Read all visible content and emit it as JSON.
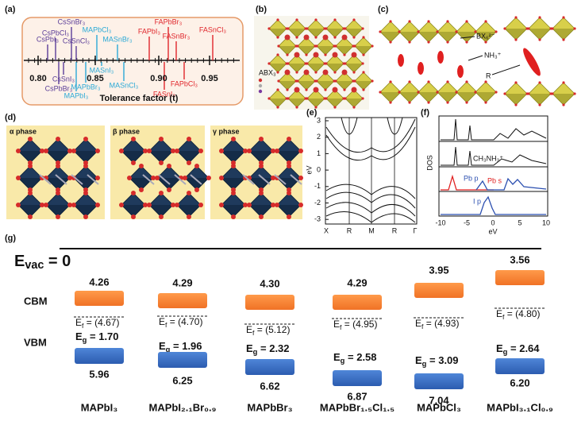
{
  "panel_labels": [
    "(a)",
    "(b)",
    "(c)",
    "(d)",
    "(e)",
    "(f)",
    "(g)"
  ],
  "tolerance": {
    "compounds": [
      "CsPbI₃",
      "CsPbCl₃",
      "CsSnBr₃",
      "CsSnCl₃",
      "CsSnI₃",
      "CsPbBr₃",
      "MAPbI₃",
      "MAPbBr₃",
      "MAPbCl₃",
      "MASnI₃",
      "MASnBr₃",
      "MASnCl₃",
      "FAPbI₃",
      "FAPbBr₃",
      "FASnBr₃",
      "FASnI₃",
      "FAPbCl₃",
      "FASnCl₃"
    ],
    "ticks": [
      "0.80",
      "0.85",
      "0.90",
      "0.95"
    ],
    "axis_label": "Tolerance factor (t)"
  },
  "perovskite": {
    "legend": "ABX₃"
  },
  "layered": {
    "labels": [
      "BX₆²⁻",
      "NH₃⁺",
      "R"
    ]
  },
  "phases": [
    "α phase",
    "β phase",
    "γ phase"
  ],
  "bands": {
    "y_label": "eV",
    "yticks": [
      "3",
      "2",
      "1",
      "0",
      "-1",
      "-2",
      "-3"
    ],
    "xticks": [
      "X",
      "R",
      "M",
      "R",
      "Γ"
    ]
  },
  "dos": {
    "y_label": "DOS",
    "x_label": "eV",
    "xticks": [
      "-10",
      "-5",
      "0",
      "5",
      "10"
    ],
    "labels": [
      "CH₃NH₃⁺",
      "Pb p",
      "Pb s",
      "I p"
    ]
  },
  "levels": {
    "evac": {
      "symbol": "E",
      "sub": "vac",
      "rest": " = 0"
    },
    "rows": [
      "CBM",
      "VBM"
    ],
    "ef": {
      "symbol": "E",
      "sub": "f"
    },
    "eg": {
      "symbol": "E",
      "sub": "g"
    },
    "equals": " = ",
    "materials": [
      {
        "name": "MAPbI₃",
        "cbm": "4.26",
        "ef": "(4.67)",
        "eg": "1.70",
        "vbm": "5.96"
      },
      {
        "name": "MAPbI₂.₁Br₀.₉",
        "cbm": "4.29",
        "ef": "(4.70)",
        "eg": "1.96",
        "vbm": "6.25"
      },
      {
        "name": "MAPbBr₃",
        "cbm": "4.30",
        "ef": "(5.12)",
        "eg": "2.32",
        "vbm": "6.62"
      },
      {
        "name": "MAPbBr₁.₅Cl₁.₅",
        "cbm": "4.29",
        "ef": "(4.95)",
        "eg": "2.58",
        "vbm": "6.87"
      },
      {
        "name": "MAPbCl₃",
        "cbm": "3.95",
        "ef": "(4.93)",
        "eg": "3.09",
        "vbm": "7.04"
      },
      {
        "name": "MAPbI₃.₁Cl₀.₉",
        "cbm": "3.56",
        "ef": "(4.80)",
        "eg": "2.64",
        "vbm": "6.20"
      }
    ]
  }
}
